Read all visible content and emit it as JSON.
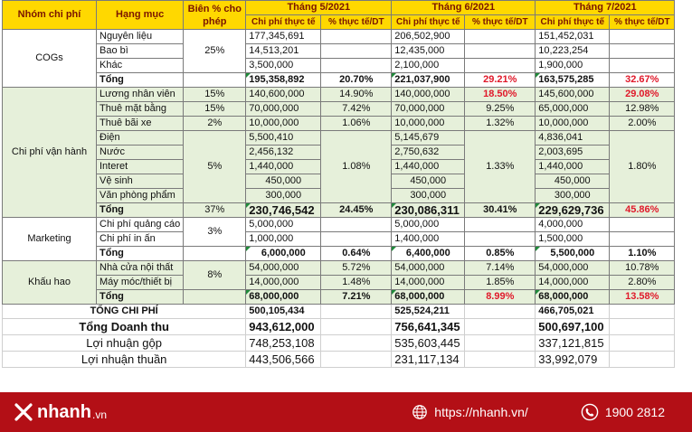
{
  "headers": {
    "group": "Nhóm chi phí",
    "item": "Hạng mục",
    "margin": "Biên % cho phép",
    "months": [
      "Tháng 5/2021",
      "Tháng 6/2021",
      "Tháng 7/2021"
    ],
    "actual": "Chi phí thực tế",
    "pct": "% thực tế/DT"
  },
  "cogs": {
    "name": "COGs",
    "margin": "25%",
    "items": [
      {
        "label": "Nguyên liệu",
        "v": [
          "177,345,691",
          "206,502,900",
          "151,452,031"
        ]
      },
      {
        "label": "Bao bì",
        "v": [
          "14,513,201",
          "12,435,000",
          "10,223,254"
        ]
      },
      {
        "label": "Khác",
        "v": [
          "3,500,000",
          "2,100,000",
          "1,900,000"
        ]
      }
    ],
    "total": {
      "label": "Tổng",
      "v": [
        "195,358,892",
        "221,037,900",
        "163,575,285"
      ],
      "p": [
        "20.70%",
        "29.21%",
        "32.67%"
      ]
    }
  },
  "ops": {
    "name": "Chi phí vận hành",
    "items": [
      {
        "label": "Lương nhân viên",
        "margin": "15%",
        "v": [
          "140,600,000",
          "140,000,000",
          "145,600,000"
        ],
        "p": [
          "14.90%",
          "18.50%",
          "29.08%"
        ]
      },
      {
        "label": "Thuê mặt bằng",
        "margin": "15%",
        "v": [
          "70,000,000",
          "70,000,000",
          "65,000,000"
        ],
        "p": [
          "7.42%",
          "9.25%",
          "12.98%"
        ]
      },
      {
        "label": "Thuê bãi xe",
        "margin": "2%",
        "v": [
          "10,000,000",
          "10,000,000",
          "10,000,000"
        ],
        "p": [
          "1.06%",
          "1.32%",
          "2.00%"
        ]
      }
    ],
    "util_margin": "5%",
    "util_pct": [
      "1.08%",
      "1.33%",
      "1.80%"
    ],
    "util": [
      {
        "label": "Điện",
        "v": [
          "5,500,410",
          "5,145,679",
          "4,836,041"
        ]
      },
      {
        "label": "Nước",
        "v": [
          "2,456,132",
          "2,750,632",
          "2,003,695"
        ]
      },
      {
        "label": "Interet",
        "v": [
          "1,440,000",
          "1,440,000",
          "1,440,000"
        ]
      },
      {
        "label": "Vệ sinh",
        "v": [
          "450,000",
          "450,000",
          "450,000"
        ]
      },
      {
        "label": "Văn phòng phẩm",
        "v": [
          "300,000",
          "300,000",
          "300,000"
        ]
      }
    ],
    "total": {
      "label": "Tổng",
      "margin": "37%",
      "v": [
        "230,746,542",
        "230,086,311",
        "229,629,736"
      ],
      "p": [
        "24.45%",
        "30.41%",
        "45.86%"
      ]
    }
  },
  "marketing": {
    "name": "Marketing",
    "margin": "3%",
    "items": [
      {
        "label": "Chi phí quảng cáo",
        "v": [
          "5,000,000",
          "5,000,000",
          "4,000,000"
        ]
      },
      {
        "label": "Chi phí in ấn",
        "v": [
          "1,000,000",
          "1,400,000",
          "1,500,000"
        ]
      }
    ],
    "total": {
      "label": "Tổng",
      "v": [
        "6,000,000",
        "6,400,000",
        "5,500,000"
      ],
      "p": [
        "0.64%",
        "0.85%",
        "1.10%"
      ]
    }
  },
  "depreciation": {
    "name": "Khấu hao",
    "margin": "8%",
    "items": [
      {
        "label": "Nhà cửa nội thất",
        "v": [
          "54,000,000",
          "54,000,000",
          "54,000,000"
        ],
        "p": [
          "5.72%",
          "7.14%",
          "10.78%"
        ]
      },
      {
        "label": "Máy móc/thiết bị",
        "v": [
          "14,000,000",
          "14,000,000",
          "14,000,000"
        ],
        "p": [
          "1.48%",
          "1.85%",
          "2.80%"
        ]
      }
    ],
    "total": {
      "label": "Tổng",
      "v": [
        "68,000,000",
        "68,000,000",
        "68,000,000"
      ],
      "p": [
        "7.21%",
        "8.99%",
        "13.58%"
      ]
    }
  },
  "summary": [
    {
      "label": "TỔNG CHI PHÍ",
      "v": [
        "500,105,434",
        "525,524,211",
        "466,705,021"
      ]
    },
    {
      "label": "Tổng Doanh thu",
      "v": [
        "943,612,000",
        "756,641,345",
        "500,697,100"
      ]
    },
    {
      "label": "Lợi nhuận gộp",
      "v": [
        "748,253,108",
        "535,603,445",
        "337,121,815"
      ]
    },
    {
      "label": "Lợi nhuận thuần",
      "v": [
        "443,506,566",
        "231,117,134",
        "33,992,079"
      ]
    }
  ],
  "footer": {
    "brand": "nhanh",
    "brand_suffix": ".vn",
    "website": "https://nhanh.vn/",
    "phone": "1900 2812"
  },
  "colors": {
    "header": "#ffd800",
    "green": "#e6f0da",
    "red": "#e0192a",
    "footer": "#b30f16"
  }
}
